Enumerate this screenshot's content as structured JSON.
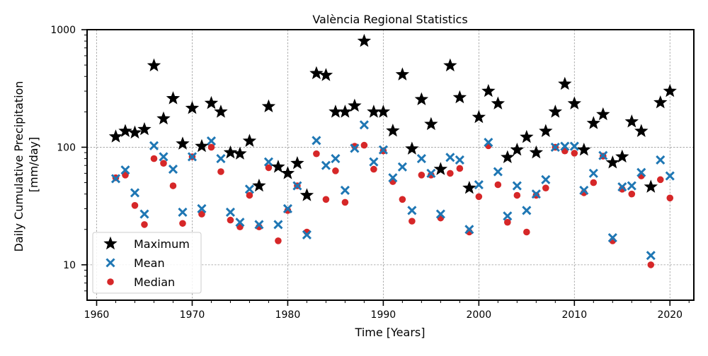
{
  "chart_data": {
    "type": "scatter",
    "title": "València Regional Statistics",
    "xlabel": "Time [Years]",
    "ylabel": [
      "Daily Cumulative Precipitation",
      "[mm/day]"
    ],
    "yscale": "log",
    "xlim": [
      1959,
      2022.5
    ],
    "ylim": [
      5,
      1000
    ],
    "xticks": [
      1960,
      1970,
      1980,
      1990,
      2000,
      2010,
      2020
    ],
    "yticks": [
      10,
      100,
      1000
    ],
    "grid": true,
    "legend_position": "lower-left",
    "x": [
      1962,
      1963,
      1964,
      1965,
      1966,
      1967,
      1968,
      1969,
      1970,
      1971,
      1972,
      1973,
      1974,
      1975,
      1976,
      1977,
      1978,
      1979,
      1980,
      1981,
      1982,
      1983,
      1984,
      1985,
      1986,
      1987,
      1988,
      1989,
      1990,
      1991,
      1992,
      1993,
      1994,
      1995,
      1996,
      1997,
      1998,
      1999,
      2000,
      2001,
      2002,
      2003,
      2004,
      2005,
      2006,
      2007,
      2008,
      2009,
      2010,
      2011,
      2012,
      2013,
      2014,
      2015,
      2016,
      2017,
      2018,
      2019,
      2020
    ],
    "series": [
      {
        "name": "Maximum",
        "marker": "star",
        "color": "#000000",
        "values": [
          123,
          137,
          133,
          142,
          495,
          175,
          260,
          107,
          215,
          102,
          237,
          200,
          90,
          88,
          113,
          47,
          222,
          68,
          60,
          73,
          39,
          425,
          410,
          200,
          200,
          225,
          800,
          200,
          200,
          138,
          415,
          97,
          255,
          157,
          65,
          495,
          265,
          45,
          180,
          300,
          235,
          82,
          95,
          122,
          90,
          137,
          200,
          345,
          235,
          95,
          160,
          190,
          74,
          83,
          165,
          137,
          46,
          240,
          300
        ]
      },
      {
        "name": "Mean",
        "marker": "x",
        "color": "#1f77b4",
        "values": [
          54,
          64,
          41,
          27,
          103,
          83,
          65,
          28,
          83,
          30,
          113,
          80,
          28,
          23,
          44,
          22,
          75,
          22,
          30,
          47,
          18,
          114,
          70,
          80,
          43,
          98,
          155,
          75,
          95,
          55,
          68,
          29,
          80,
          60,
          27,
          82,
          78,
          20,
          48,
          110,
          62,
          26,
          47,
          29,
          40,
          53,
          100,
          102,
          102,
          43,
          60,
          85,
          17,
          46,
          47,
          61,
          12,
          78,
          57
        ]
      },
      {
        "name": "Median",
        "marker": "circle",
        "color": "#d62728",
        "values": [
          55,
          58,
          32,
          22,
          80,
          73,
          47,
          22.5,
          83,
          27,
          100,
          62,
          24,
          21,
          39,
          21,
          67,
          16,
          29,
          47,
          19,
          88,
          36,
          63,
          34,
          102,
          104,
          65,
          93,
          51,
          36,
          23.5,
          58,
          58,
          25,
          60,
          66,
          19,
          38,
          103,
          48,
          23,
          39,
          19,
          39,
          45,
          100,
          93,
          89,
          41,
          50,
          84,
          16,
          44,
          40,
          57,
          10,
          53,
          37
        ]
      }
    ]
  }
}
